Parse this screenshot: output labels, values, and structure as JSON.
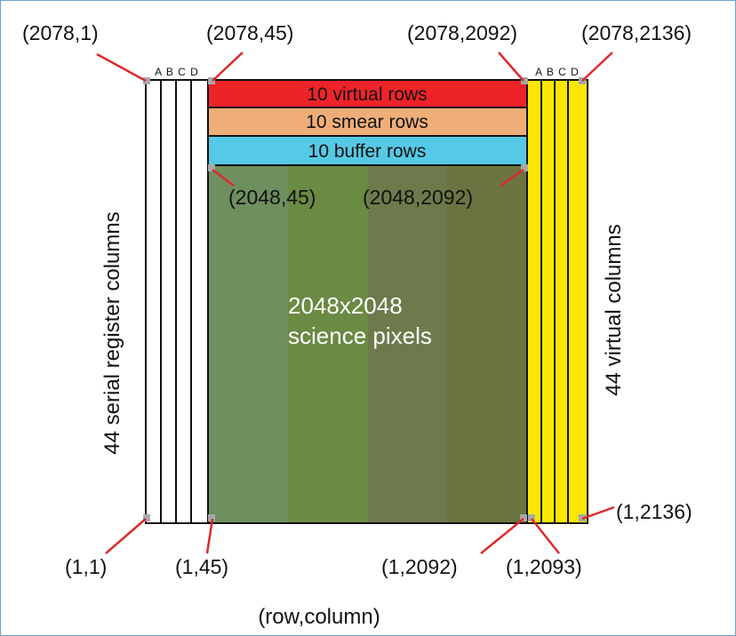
{
  "diagram": {
    "left_register": {
      "letters": "A B C D",
      "side_label": "44 serial register columns"
    },
    "right_register": {
      "letters": "A B C D",
      "side_label": "44 virtual columns"
    },
    "bands": {
      "virtual_rows": "10 virtual rows",
      "smear_rows": "10 smear rows",
      "buffer_rows": "10 buffer rows"
    },
    "science": {
      "line1": "2048x2048",
      "line2": "science pixels",
      "stripe_colors": [
        "#6e8f5e",
        "#6b8a43",
        "#6d7a4b",
        "#6b7440"
      ]
    },
    "colors": {
      "virtual_rows": "#ee2328",
      "smear_rows": "#efae78",
      "buffer_rows": "#55c9e5",
      "virtual_columns": "#fde600",
      "pointer": "#dd2a2a",
      "marker": "#a8a8a8"
    },
    "coords": {
      "top_left_register": "(2078,1)",
      "top_left_science": "(2078,45)",
      "top_right_science": "(2078,2092)",
      "top_right_register": "(2078,2136)",
      "buffer_left": "(2048,45)",
      "buffer_right": "(2048,2092)",
      "bottom_left_register": "(1,1)",
      "bottom_left_science": "(1,45)",
      "bottom_right_science": "(1,2092)",
      "bottom_right_register_start": "(1,2093)",
      "bottom_right_register_end": "(1,2136)"
    },
    "legend": "(row,column)"
  }
}
